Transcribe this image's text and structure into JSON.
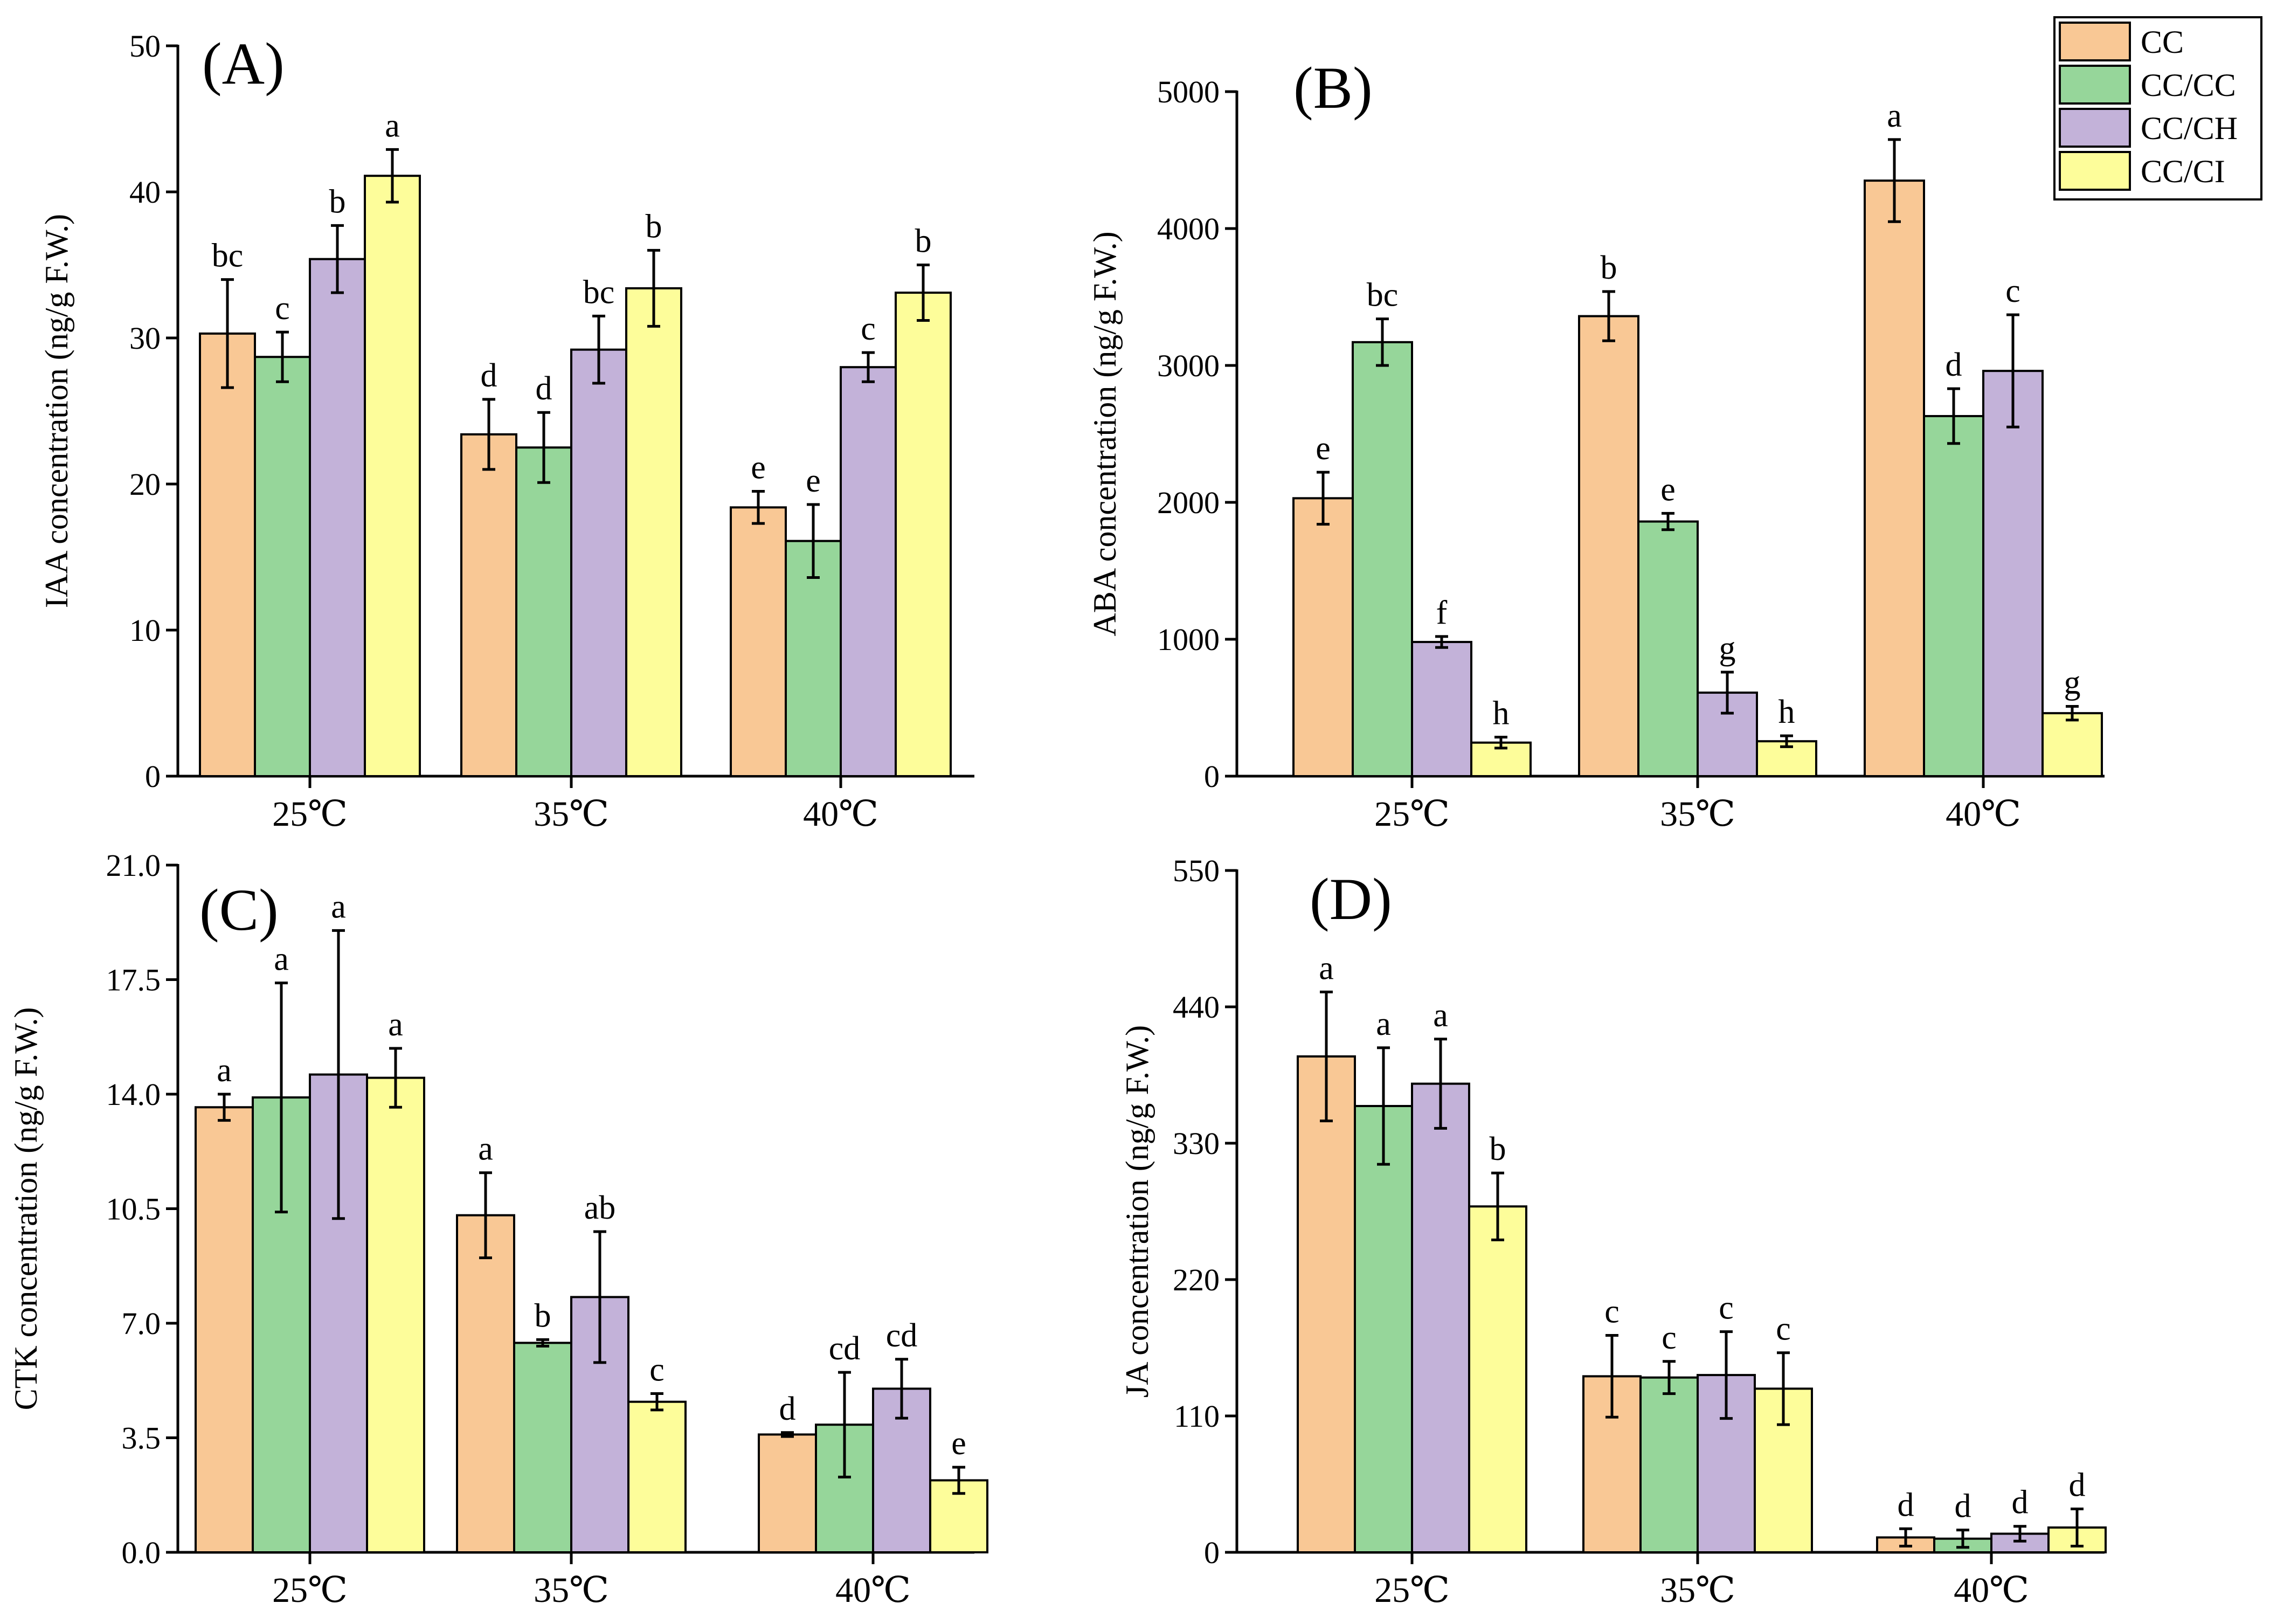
{
  "colors": {
    "CC": "#f9c895",
    "CC/CC": "#96d69a",
    "CC/CH": "#c3b2d9",
    "CC/CI": "#fdfd9a"
  },
  "legend": {
    "items": [
      "CC",
      "CC/CC",
      "CC/CH",
      "CC/CI"
    ]
  },
  "chart_data": [
    {
      "panel": "(A)",
      "type": "bar",
      "ylabel": "IAA concentration (ng/g F.W.)",
      "ylim": [
        0,
        50
      ],
      "yticks": [
        "0",
        "10",
        "20",
        "30",
        "40",
        "50"
      ],
      "ytick_values": [
        0,
        10,
        20,
        30,
        40,
        50
      ],
      "categories": [
        "25℃",
        "35℃",
        "40℃"
      ],
      "series": [
        {
          "name": "CC",
          "values": [
            30.3,
            23.4,
            18.4
          ],
          "errors": [
            3.7,
            2.4,
            1.1
          ],
          "letters": [
            "bc",
            "d",
            "e"
          ]
        },
        {
          "name": "CC/CC",
          "values": [
            28.7,
            22.5,
            16.1
          ],
          "errors": [
            1.7,
            2.4,
            2.5
          ],
          "letters": [
            "c",
            "d",
            "e"
          ]
        },
        {
          "name": "CC/CH",
          "values": [
            35.4,
            29.2,
            28.0
          ],
          "errors": [
            2.3,
            2.3,
            1.0
          ],
          "letters": [
            "b",
            "bc",
            "c"
          ]
        },
        {
          "name": "CC/CI",
          "values": [
            41.1,
            33.4,
            33.1
          ],
          "errors": [
            1.8,
            2.6,
            1.9
          ],
          "letters": [
            "a",
            "b",
            "b"
          ]
        }
      ]
    },
    {
      "panel": "(B)",
      "type": "bar",
      "ylabel": "ABA concentration (ng/g F.W.)",
      "ylim": [
        0,
        5000
      ],
      "yticks": [
        "0",
        "1000",
        "2000",
        "3000",
        "4000",
        "5000"
      ],
      "ytick_values": [
        0,
        1000,
        2000,
        3000,
        4000,
        5000
      ],
      "categories": [
        "25℃",
        "35℃",
        "40℃"
      ],
      "series": [
        {
          "name": "CC",
          "values": [
            2030,
            3360,
            4350
          ],
          "errors": [
            190,
            180,
            300
          ],
          "letters": [
            "e",
            "b",
            "a"
          ]
        },
        {
          "name": "CC/CC",
          "values": [
            3170,
            1860,
            2630
          ],
          "errors": [
            170,
            60,
            200
          ],
          "letters": [
            "bc",
            "e",
            "d"
          ]
        },
        {
          "name": "CC/CH",
          "values": [
            980,
            610,
            2960
          ],
          "errors": [
            40,
            150,
            410
          ],
          "letters": [
            "f",
            "g",
            "c"
          ]
        },
        {
          "name": "CC/CI",
          "values": [
            245,
            255,
            460
          ],
          "errors": [
            40,
            40,
            50
          ],
          "letters": [
            "h",
            "h",
            "g"
          ]
        }
      ]
    },
    {
      "panel": "(C)",
      "type": "bar",
      "ylabel": "CTK concentration (ng/g F.W.)",
      "ylim": [
        0,
        21
      ],
      "yticks": [
        "0.0",
        "3.5",
        "7.0",
        "10.5",
        "14.0",
        "17.5",
        "21.0"
      ],
      "ytick_values": [
        0,
        3.5,
        7,
        10.5,
        14,
        17.5,
        21
      ],
      "categories": [
        "25℃",
        "35℃",
        "40℃"
      ],
      "series": [
        {
          "name": "CC",
          "values": [
            13.6,
            10.3,
            3.6
          ],
          "errors": [
            0.4,
            1.3,
            0.06
          ],
          "letters": [
            "a",
            "a",
            "d"
          ]
        },
        {
          "name": "CC/CC",
          "values": [
            13.9,
            6.4,
            3.9
          ],
          "errors": [
            3.5,
            0.1,
            1.6
          ],
          "letters": [
            "a",
            "b",
            "cd"
          ]
        },
        {
          "name": "CC/CH",
          "values": [
            14.6,
            7.8,
            5.0
          ],
          "errors": [
            4.4,
            2.0,
            0.9
          ],
          "letters": [
            "a",
            "ab",
            "cd"
          ]
        },
        {
          "name": "CC/CI",
          "values": [
            14.5,
            4.6,
            2.2
          ],
          "errors": [
            0.9,
            0.25,
            0.4
          ],
          "letters": [
            "a",
            "c",
            "e"
          ]
        }
      ]
    },
    {
      "panel": "(D)",
      "type": "bar",
      "ylabel": "JA concentration (ng/g F.W.)",
      "ylim": [
        0,
        550
      ],
      "yticks": [
        "0",
        "110",
        "220",
        "330",
        "440",
        "550"
      ],
      "ytick_values": [
        0,
        110,
        220,
        330,
        440,
        550
      ],
      "categories": [
        "25℃",
        "35℃",
        "40℃"
      ],
      "series": [
        {
          "name": "CC",
          "values": [
            400,
            142,
            12
          ],
          "errors": [
            52,
            33,
            7
          ],
          "letters": [
            "a",
            "c",
            "d"
          ]
        },
        {
          "name": "CC/CC",
          "values": [
            360,
            141,
            11
          ],
          "errors": [
            47,
            13,
            7
          ],
          "letters": [
            "a",
            "c",
            "d"
          ]
        },
        {
          "name": "CC/CH",
          "values": [
            378,
            143,
            15
          ],
          "errors": [
            36,
            35,
            6
          ],
          "letters": [
            "a",
            "c",
            "d"
          ]
        },
        {
          "name": "CC/CI",
          "values": [
            279,
            132,
            20
          ],
          "errors": [
            27,
            29,
            15
          ],
          "letters": [
            "b",
            "c",
            "d"
          ]
        }
      ]
    }
  ]
}
